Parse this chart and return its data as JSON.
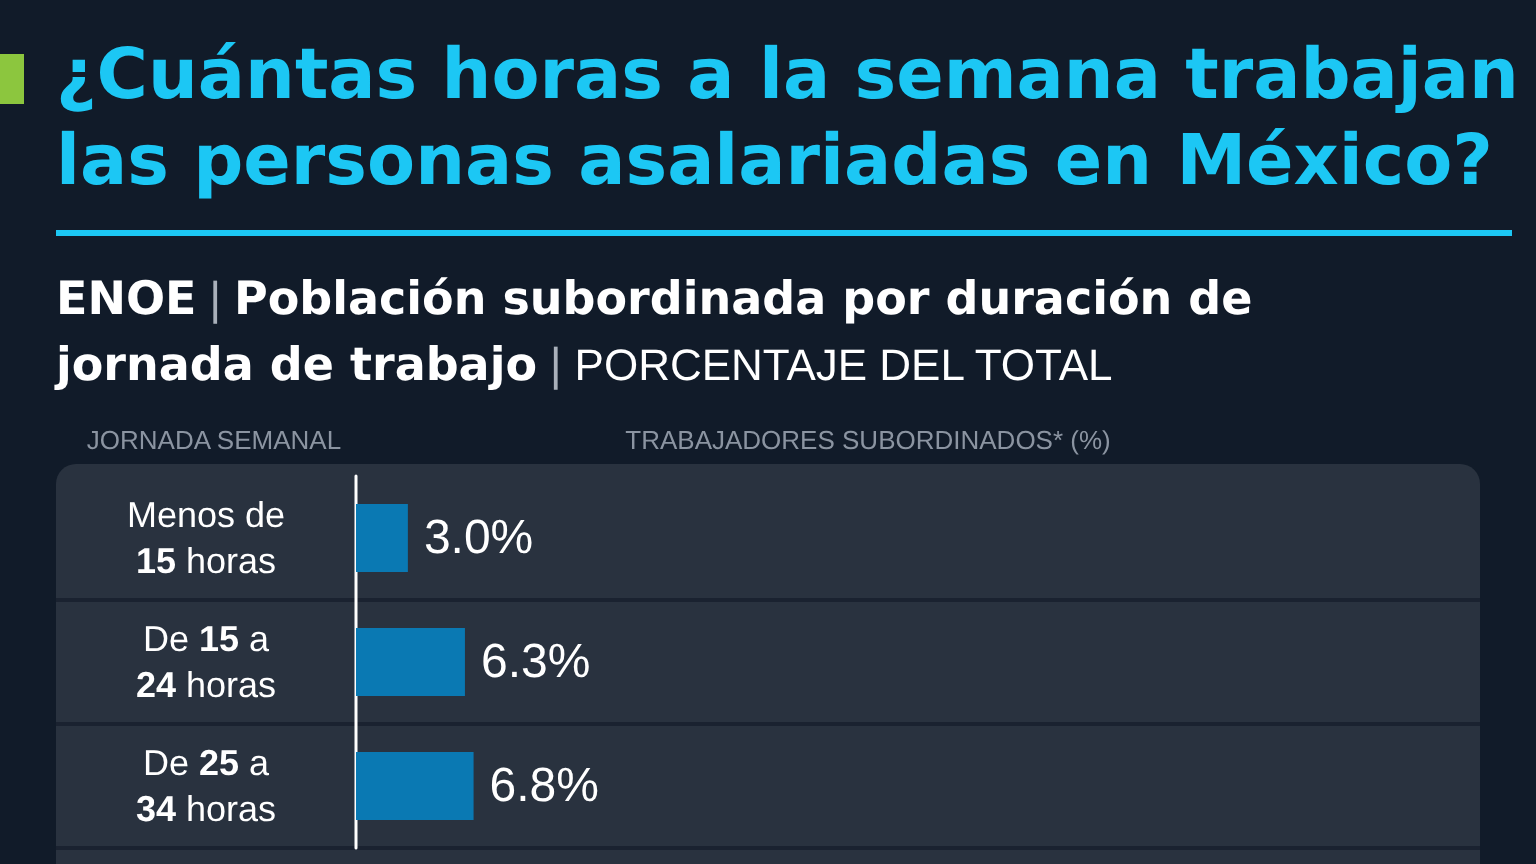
{
  "chart_data": {
    "type": "bar",
    "orientation": "horizontal",
    "title": "¿Cuántas horas a la semana trabajan las personas asalariadas en México?",
    "subtitle": "ENOE | Población subordinada por duración de jornada de trabajo | PORCENTAJE DEL TOTAL",
    "ylabel": "JORNADA SEMANAL",
    "xlabel": "TRABAJADORES SUBORDINADOS* (%)",
    "categories": [
      "Menos de 15 horas",
      "De 15 a 24 horas",
      "De 25 a 34 horas"
    ],
    "values": [
      3.0,
      6.3,
      6.8
    ],
    "value_labels": [
      "3.0%",
      "6.3%",
      "6.8%"
    ],
    "color": "#0a79b3",
    "xlim": [
      0,
      65
    ]
  }
}
